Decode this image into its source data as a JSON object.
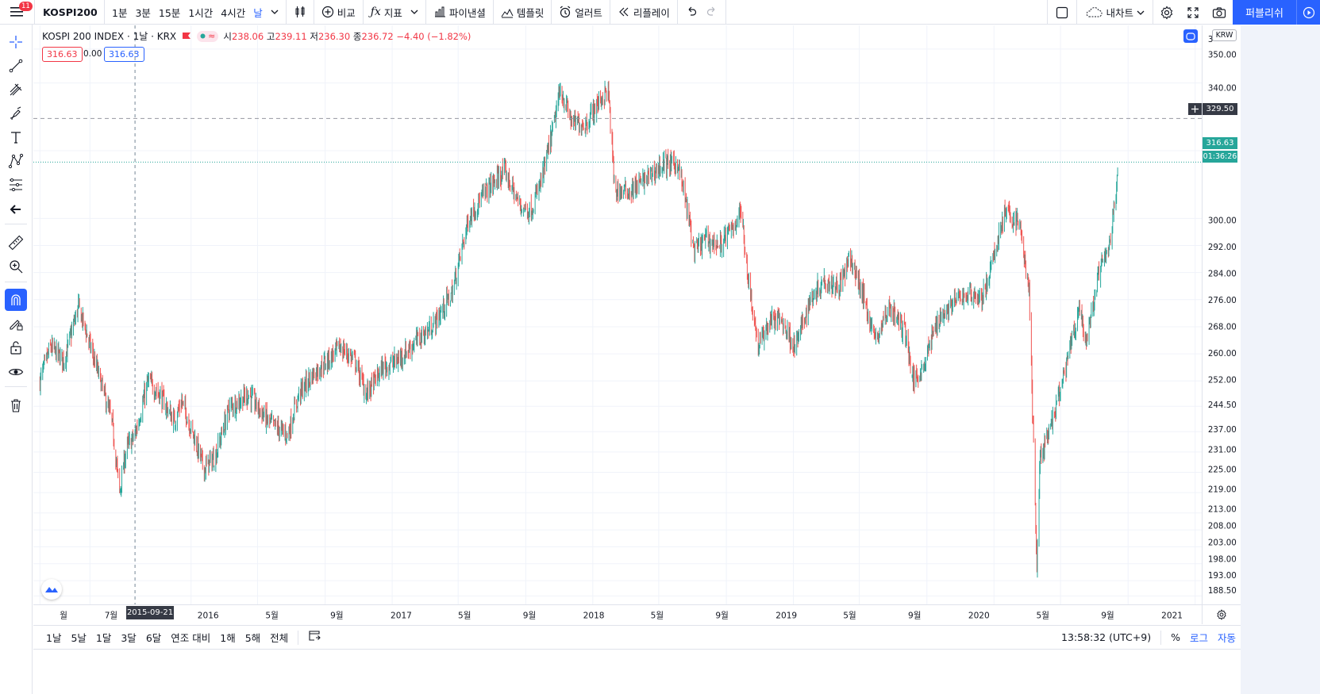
{
  "topbar": {
    "menu_badge": "11",
    "symbol": "KOSPI200",
    "intervals": [
      "1분",
      "3분",
      "15분",
      "1시간",
      "4시간",
      "날"
    ],
    "active_interval": "날",
    "compare": "비교",
    "indicators": "지표",
    "pine": "파이낸셜",
    "templates": "템플릿",
    "alert": "얼러트",
    "replay": "리플레이",
    "my_chart": "내차트",
    "publish": "퍼블리쉬"
  },
  "legend": {
    "name": "KOSPI 200 INDEX · 1날 · KRX",
    "o_label": "시",
    "o": "238.06",
    "h_label": "고",
    "h": "239.11",
    "l_label": "저",
    "l": "236.30",
    "c_label": "종",
    "c": "236.72",
    "change": "−4.40 (−1.82%)",
    "bid": "316.63",
    "spread": "0.00",
    "ask": "316.63"
  },
  "price_axis": {
    "currency": "KRW",
    "ticks": [
      "350.00",
      "340.00",
      "320.00",
      "300.00",
      "292.00",
      "284.00",
      "276.00",
      "268.00",
      "260.00",
      "252.00",
      "244.50",
      "237.00",
      "231.00",
      "225.00",
      "219.00",
      "213.00",
      "208.00",
      "203.00",
      "198.00",
      "193.00",
      "188.50"
    ],
    "top_partial": "3",
    "crosshair_label": "329.50",
    "last_price": "316.63",
    "countdown": "01:36:26"
  },
  "time_axis": {
    "labels": [
      "월",
      "7월",
      "2016",
      "5월",
      "9월",
      "2017",
      "5월",
      "9월",
      "2018",
      "5월",
      "9월",
      "2019",
      "5월",
      "9월",
      "2020",
      "5월",
      "9월",
      "2021"
    ],
    "crosshair_date": "2015-09-21"
  },
  "bottombar": {
    "ranges": [
      "1날",
      "5날",
      "1달",
      "3달",
      "6달",
      "연조 대비",
      "1해",
      "5해",
      "전체"
    ],
    "clock": "13:58:32 (UTC+9)",
    "pct": "%",
    "log": "로그",
    "auto": "자동"
  },
  "colors": {
    "up": "#26a69a",
    "down": "#ef5350",
    "accent": "#2962ff",
    "last": "#26a69a"
  },
  "chart_data": {
    "type": "candlestick",
    "ylim": [
      186,
      357
    ],
    "anchors": [
      [
        "2015-04-01",
        252
      ],
      [
        "2015-04-20",
        262
      ],
      [
        "2015-05-15",
        258
      ],
      [
        "2015-06-10",
        274
      ],
      [
        "2015-06-25",
        266
      ],
      [
        "2015-07-20",
        252
      ],
      [
        "2015-08-10",
        240
      ],
      [
        "2015-08-24",
        219
      ],
      [
        "2015-09-05",
        232
      ],
      [
        "2015-09-21",
        236
      ],
      [
        "2015-10-15",
        252
      ],
      [
        "2015-11-05",
        248
      ],
      [
        "2015-12-01",
        240
      ],
      [
        "2015-12-15",
        246
      ],
      [
        "2016-01-05",
        236
      ],
      [
        "2016-01-25",
        226
      ],
      [
        "2016-02-15",
        230
      ],
      [
        "2016-03-10",
        244
      ],
      [
        "2016-04-15",
        248
      ],
      [
        "2016-05-20",
        240
      ],
      [
        "2016-06-25",
        236
      ],
      [
        "2016-07-15",
        248
      ],
      [
        "2016-08-10",
        254
      ],
      [
        "2016-09-05",
        258
      ],
      [
        "2016-09-28",
        262
      ],
      [
        "2016-10-25",
        258
      ],
      [
        "2016-11-15",
        248
      ],
      [
        "2016-12-15",
        256
      ],
      [
        "2017-01-10",
        258
      ],
      [
        "2017-02-15",
        264
      ],
      [
        "2017-03-15",
        268
      ],
      [
        "2017-04-20",
        278
      ],
      [
        "2017-05-20",
        300
      ],
      [
        "2017-06-20",
        308
      ],
      [
        "2017-07-25",
        314
      ],
      [
        "2017-08-20",
        304
      ],
      [
        "2017-09-10",
        302
      ],
      [
        "2017-10-01",
        312
      ],
      [
        "2017-10-20",
        326
      ],
      [
        "2017-11-03",
        338
      ],
      [
        "2017-11-25",
        328
      ],
      [
        "2017-12-20",
        328
      ],
      [
        "2018-01-10",
        334
      ],
      [
        "2018-01-29",
        338
      ],
      [
        "2018-02-10",
        308
      ],
      [
        "2018-03-10",
        308
      ],
      [
        "2018-04-10",
        312
      ],
      [
        "2018-05-10",
        316
      ],
      [
        "2018-06-05",
        316
      ],
      [
        "2018-06-20",
        304
      ],
      [
        "2018-07-05",
        290
      ],
      [
        "2018-07-25",
        294
      ],
      [
        "2018-08-20",
        292
      ],
      [
        "2018-09-15",
        298
      ],
      [
        "2018-09-28",
        302
      ],
      [
        "2018-10-11",
        282
      ],
      [
        "2018-10-29",
        262
      ],
      [
        "2018-11-20",
        270
      ],
      [
        "2018-12-10",
        270
      ],
      [
        "2019-01-04",
        262
      ],
      [
        "2019-02-01",
        276
      ],
      [
        "2019-02-25",
        282
      ],
      [
        "2019-03-25",
        280
      ],
      [
        "2019-04-15",
        288
      ],
      [
        "2019-05-10",
        276
      ],
      [
        "2019-05-30",
        264
      ],
      [
        "2019-06-25",
        274
      ],
      [
        "2019-07-25",
        266
      ],
      [
        "2019-08-06",
        252
      ],
      [
        "2019-08-25",
        256
      ],
      [
        "2019-09-20",
        270
      ],
      [
        "2019-10-25",
        276
      ],
      [
        "2019-11-20",
        278
      ],
      [
        "2019-12-10",
        276
      ],
      [
        "2019-12-25",
        284
      ],
      [
        "2020-01-20",
        302
      ],
      [
        "2020-02-17",
        298
      ],
      [
        "2020-03-05",
        278
      ],
      [
        "2020-03-19",
        198
      ],
      [
        "2020-03-25",
        230
      ],
      [
        "2020-04-10",
        236
      ],
      [
        "2020-05-05",
        252
      ],
      [
        "2020-06-05",
        274
      ],
      [
        "2020-06-15",
        262
      ],
      [
        "2020-07-10",
        284
      ],
      [
        "2020-07-30",
        292
      ],
      [
        "2020-08-14",
        316
      ]
    ]
  }
}
